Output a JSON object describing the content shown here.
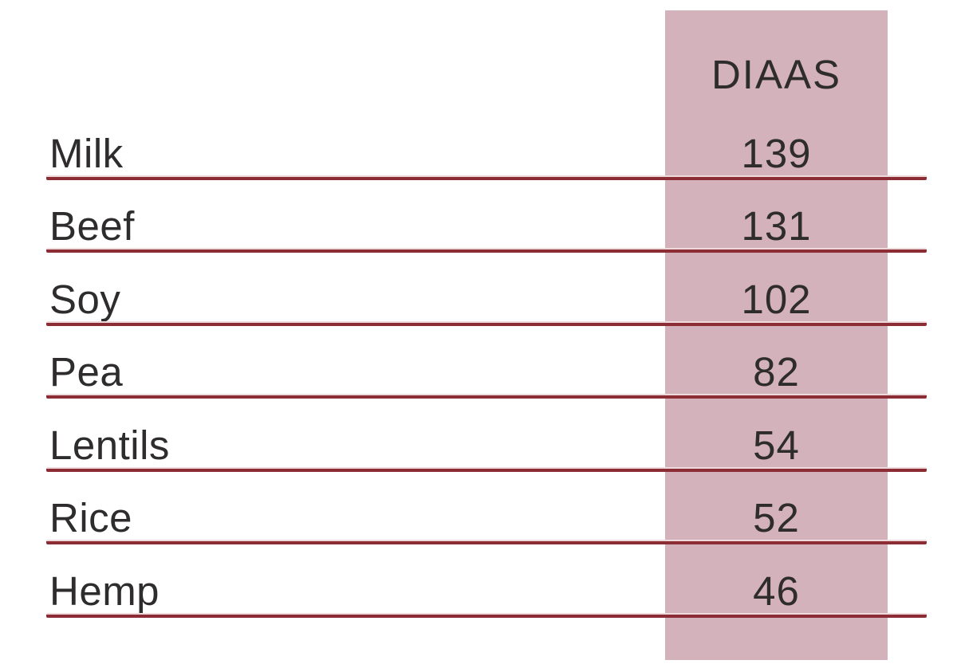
{
  "colors": {
    "background": "#ffffff",
    "band": "#d4b2bb",
    "line": "#8c2d35",
    "line_highlight": "#eed9db",
    "text": "#2e2c2d"
  },
  "table": {
    "value_column_header": "DIAAS",
    "rows": [
      {
        "label": "Milk",
        "value": "139"
      },
      {
        "label": "Beef",
        "value": "131"
      },
      {
        "label": "Soy",
        "value": "102"
      },
      {
        "label": "Pea",
        "value": "82"
      },
      {
        "label": "Lentils",
        "value": "54"
      },
      {
        "label": "Rice",
        "value": "52"
      },
      {
        "label": "Hemp",
        "value": "46"
      }
    ]
  },
  "chart_data": {
    "type": "table",
    "title": "",
    "columns": [
      "",
      "DIAAS"
    ],
    "categories": [
      "Milk",
      "Beef",
      "Soy",
      "Pea",
      "Lentils",
      "Rice",
      "Hemp"
    ],
    "values": [
      139,
      131,
      102,
      82,
      54,
      52,
      46
    ],
    "layout_hints": {
      "value_column_highlighted": true,
      "row_dividers": true,
      "grid": "horizontal-only"
    }
  }
}
